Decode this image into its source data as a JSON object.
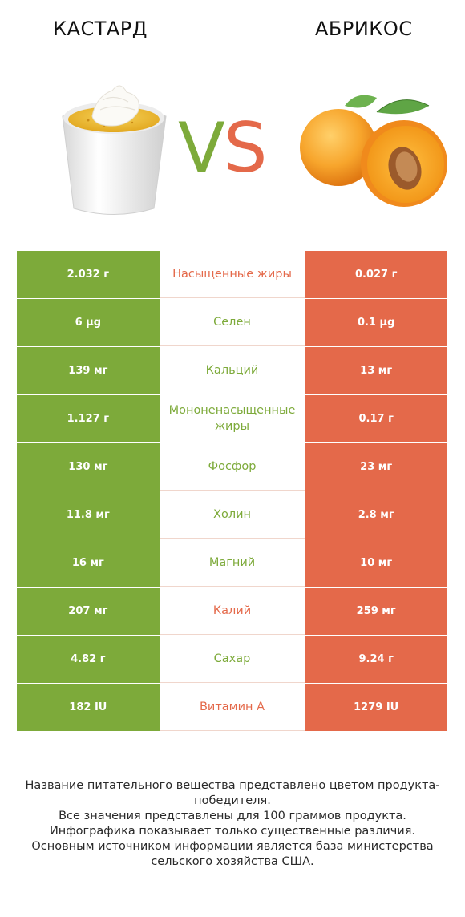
{
  "header": {
    "left_title": "КАСТАРД",
    "right_title": "АБРИКОС",
    "vs_v": "V",
    "vs_s": "S"
  },
  "colors": {
    "winner_left": "#7daa3a",
    "winner_right": "#e4694a"
  },
  "rows": [
    {
      "left": "2.032 г",
      "label": "Насыщенные жиры",
      "right": "0.027 г",
      "winner": "right"
    },
    {
      "left": "6 µg",
      "label": "Селен",
      "right": "0.1 µg",
      "winner": "left"
    },
    {
      "left": "139 мг",
      "label": "Кальций",
      "right": "13 мг",
      "winner": "left"
    },
    {
      "left": "1.127 г",
      "label": "Мононенасыщенные жиры",
      "right": "0.17 г",
      "winner": "left"
    },
    {
      "left": "130 мг",
      "label": "Фосфор",
      "right": "23 мг",
      "winner": "left"
    },
    {
      "left": "11.8 мг",
      "label": "Холин",
      "right": "2.8 мг",
      "winner": "left"
    },
    {
      "left": "16 мг",
      "label": "Магний",
      "right": "10 мг",
      "winner": "left"
    },
    {
      "left": "207 мг",
      "label": "Калий",
      "right": "259 мг",
      "winner": "right"
    },
    {
      "left": "4.82 г",
      "label": "Сахар",
      "right": "9.24 г",
      "winner": "left"
    },
    {
      "left": "182 IU",
      "label": "Витамин A",
      "right": "1279 IU",
      "winner": "right"
    }
  ],
  "footer": {
    "line1": "Название питательного вещества представлено цветом продукта-победителя.",
    "line2": "Все значения представлены для 100 граммов продукта.",
    "line3": "Инфографика показывает только существенные различия.",
    "line4": "Основным источником информации является база министерства сельского хозяйства США."
  }
}
